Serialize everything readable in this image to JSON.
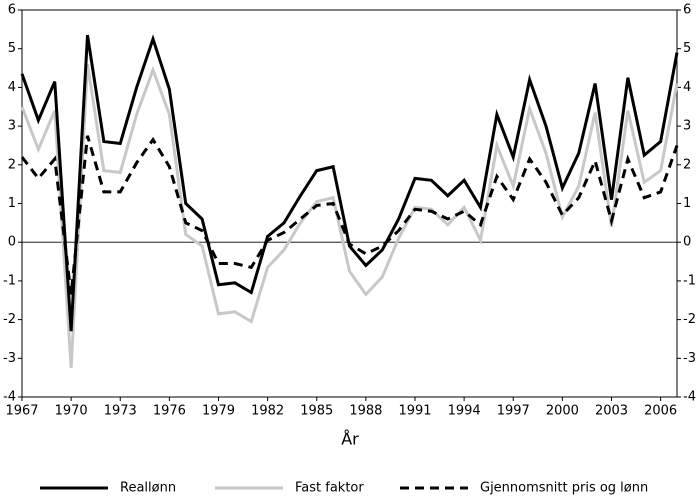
{
  "chart_data": {
    "type": "line",
    "xlabel": "År",
    "x": [
      1967,
      1968,
      1969,
      1970,
      1971,
      1972,
      1973,
      1974,
      1975,
      1976,
      1977,
      1978,
      1979,
      1980,
      1981,
      1982,
      1983,
      1984,
      1985,
      1986,
      1987,
      1988,
      1989,
      1990,
      1991,
      1992,
      1993,
      1994,
      1995,
      1996,
      1997,
      1998,
      1999,
      2000,
      2001,
      2002,
      2003,
      2004,
      2005,
      2006,
      2007
    ],
    "series": [
      {
        "name": "Reallønn",
        "color": "#000000",
        "dash": false,
        "values": [
          4.35,
          3.15,
          4.15,
          -2.3,
          5.35,
          2.6,
          2.55,
          4.0,
          5.25,
          3.95,
          1.0,
          0.6,
          -1.1,
          -1.05,
          -1.3,
          0.15,
          0.5,
          1.2,
          1.85,
          1.95,
          -0.1,
          -0.6,
          -0.2,
          0.6,
          1.65,
          1.6,
          1.2,
          1.6,
          0.9,
          3.3,
          2.2,
          4.2,
          3.0,
          1.4,
          2.3,
          4.1,
          1.1,
          4.25,
          2.25,
          2.6,
          4.9
        ]
      },
      {
        "name": "Fast faktor",
        "color": "#c8c8c8",
        "dash": false,
        "values": [
          3.5,
          2.4,
          3.4,
          -3.25,
          4.6,
          1.85,
          1.8,
          3.3,
          4.45,
          3.3,
          0.2,
          -0.1,
          -1.85,
          -1.8,
          -2.05,
          -0.65,
          -0.2,
          0.5,
          1.05,
          1.15,
          -0.75,
          -1.35,
          -0.9,
          0.1,
          0.9,
          0.85,
          0.45,
          0.9,
          0.05,
          2.5,
          1.45,
          3.45,
          2.3,
          0.65,
          1.45,
          3.35,
          0.4,
          3.4,
          1.55,
          1.85,
          4.1
        ]
      },
      {
        "name": "Gjennomsnitt pris og lønn",
        "color": "#000000",
        "dash": true,
        "values": [
          2.2,
          1.65,
          2.15,
          -1.35,
          2.75,
          1.3,
          1.3,
          2.05,
          2.65,
          1.95,
          0.5,
          0.3,
          -0.55,
          -0.55,
          -0.65,
          0.05,
          0.25,
          0.6,
          0.95,
          1.0,
          -0.05,
          -0.3,
          -0.1,
          0.3,
          0.85,
          0.8,
          0.6,
          0.8,
          0.45,
          1.7,
          1.1,
          2.15,
          1.55,
          0.7,
          1.15,
          2.1,
          0.55,
          2.15,
          1.15,
          1.3,
          2.5
        ]
      }
    ],
    "xlim": [
      1967,
      2007
    ],
    "xticks": [
      1967,
      1970,
      1973,
      1976,
      1979,
      1982,
      1985,
      1988,
      1991,
      1994,
      1997,
      2000,
      2003,
      2006
    ],
    "ylim": [
      -4,
      6
    ],
    "yticks": [
      -4,
      -3,
      -2,
      -1,
      0,
      1,
      2,
      3,
      4,
      5,
      6
    ],
    "y2lim": [
      -4,
      6
    ],
    "y2ticks": [
      -4,
      -3,
      -2,
      -1,
      0,
      1,
      2,
      3,
      4,
      5,
      6
    ]
  }
}
